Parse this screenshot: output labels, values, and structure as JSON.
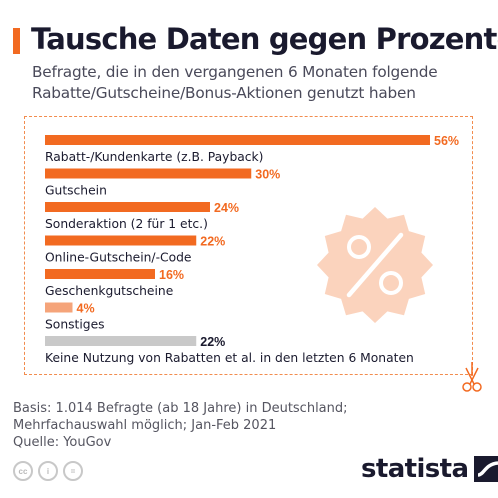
{
  "header": {
    "title": "Tausche Daten gegen Prozente",
    "subtitle": "Befragte, die in den vergangenen 6 Monaten folgende Rabatte/Gutscheine/Bonus-Aktionen genutzt haben"
  },
  "colors": {
    "accent": "#f26a21",
    "bar_primary": "#f26a21",
    "bar_secondary": "#f5a47a",
    "bar_neutral": "#c9c9c9",
    "badge": "#fbd3bd",
    "label_accent": "#f26a21",
    "label_neutral": "#1a1a2e"
  },
  "chart_data": {
    "type": "bar",
    "orientation": "horizontal",
    "categories": [
      "Rabatt-/Kundenkarte (z.B. Payback)",
      "Gutschein",
      "Sonderaktion (2 für 1 etc.)",
      "Online-Gutschein/-Code",
      "Geschenkgutscheine",
      "Sonstiges",
      "Keine Nutzung von Rabatten et al. in den letzten 6 Monaten"
    ],
    "values": [
      56,
      30,
      24,
      22,
      16,
      4,
      22
    ],
    "value_labels": [
      "56%",
      "30%",
      "24%",
      "22%",
      "16%",
      "4%",
      "22%"
    ],
    "bar_colors": [
      "#f26a21",
      "#f26a21",
      "#f26a21",
      "#f26a21",
      "#f26a21",
      "#f5a47a",
      "#c9c9c9"
    ],
    "xlim": [
      0,
      56
    ],
    "grid": false,
    "legend": "none"
  },
  "footer": {
    "basis_line1": "Basis: 1.014 Befragte (ab 18 Jahre) in Deutschland;",
    "basis_line2": "Mehrfachauswahl möglich; Jan-Feb 2021",
    "source": "Quelle: YouGov",
    "license_icons": [
      {
        "name": "cc-icon",
        "text": "cc"
      },
      {
        "name": "attribution-icon",
        "text": "i"
      },
      {
        "name": "no-derivatives-icon",
        "text": "="
      }
    ],
    "brand": "statista"
  }
}
